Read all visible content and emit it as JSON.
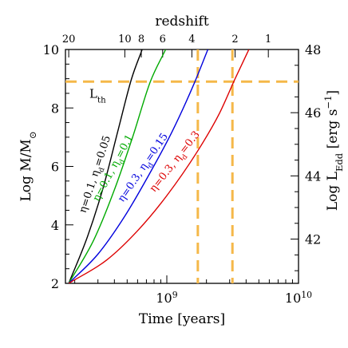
{
  "chart_data": {
    "type": "line",
    "xlabel": "Time [years]",
    "ylabel_left": "Log M/M",
    "ylabel_left_sub": "⊙",
    "ylabel_right": "Log L",
    "ylabel_right_sub": "Edd",
    "ylabel_right_unit_a": " [erg s",
    "ylabel_right_unit_sup": "−1",
    "ylabel_right_unit_b": "]",
    "top_axis_label": "redshift",
    "x_scale": "log",
    "xlim": [
      170000000.0,
      10000000000.0
    ],
    "ylim_left": [
      2,
      10
    ],
    "ylim_right": [
      40.6,
      48
    ],
    "x_ticks": [
      {
        "value": 1000000000.0,
        "base": "10",
        "exp": "9"
      },
      {
        "value": 10000000000.0,
        "base": "10",
        "exp": "10"
      }
    ],
    "y_left_ticks": [
      "2",
      "4",
      "6",
      "8",
      "10"
    ],
    "y_right_ticks": [
      "42",
      "44",
      "46",
      "48"
    ],
    "redshift_ticks": [
      {
        "label": "20",
        "time": 180000000.0
      },
      {
        "label": "10",
        "time": 480000000.0
      },
      {
        "label": "8",
        "time": 640000000.0
      },
      {
        "label": "6",
        "time": 930000000.0
      },
      {
        "label": "4",
        "time": 1550000000.0
      },
      {
        "label": "2",
        "time": 3300000000.0
      },
      {
        "label": "1",
        "time": 5900000000.0
      }
    ],
    "threshold_label": "L",
    "threshold_label_sub": "th",
    "threshold_logM": 8.9,
    "vertical_lines_time": [
      1720000000.0,
      3150000000.0
    ],
    "series": [
      {
        "name": "η=0.1, η",
        "name_sub": "d",
        "name_tail": "=0.05",
        "color": "#000000",
        "x": [
          180000000.0,
          250000000.0,
          330000000.0,
          430000000.0,
          540000000.0,
          650000000.0
        ],
        "y": [
          2.0,
          3.6,
          5.3,
          7.3,
          9.0,
          10.0
        ]
      },
      {
        "name": "η=0.1, η",
        "name_sub": "d",
        "name_tail": "=0.1",
        "color": "#00aa00",
        "x": [
          180000000.0,
          280000000.0,
          400000000.0,
          550000000.0,
          750000000.0,
          980000000.0
        ],
        "y": [
          2.0,
          3.5,
          5.2,
          7.0,
          8.9,
          10.0
        ]
      },
      {
        "name": "η=0.3, η",
        "name_sub": "d",
        "name_tail": "=0.15",
        "color": "#0000dd",
        "x": [
          180000000.0,
          300000000.0,
          480000000.0,
          750000000.0,
          1100000000.0,
          1600000000.0,
          2050000000.0
        ],
        "y": [
          2.0,
          3.0,
          4.3,
          5.8,
          7.2,
          8.8,
          10.0
        ]
      },
      {
        "name": "η=0.3, η",
        "name_sub": "d",
        "name_tail": "=0.3",
        "color": "#dd0000",
        "x": [
          180000000.0,
          350000000.0,
          600000000.0,
          1000000000.0,
          1700000000.0,
          2500000000.0,
          3300000000.0,
          4200000000.0
        ],
        "y": [
          2.0,
          2.8,
          3.8,
          5.0,
          6.5,
          7.8,
          9.0,
          10.0
        ]
      }
    ]
  },
  "colors": {
    "threshold": "#f5b849"
  }
}
